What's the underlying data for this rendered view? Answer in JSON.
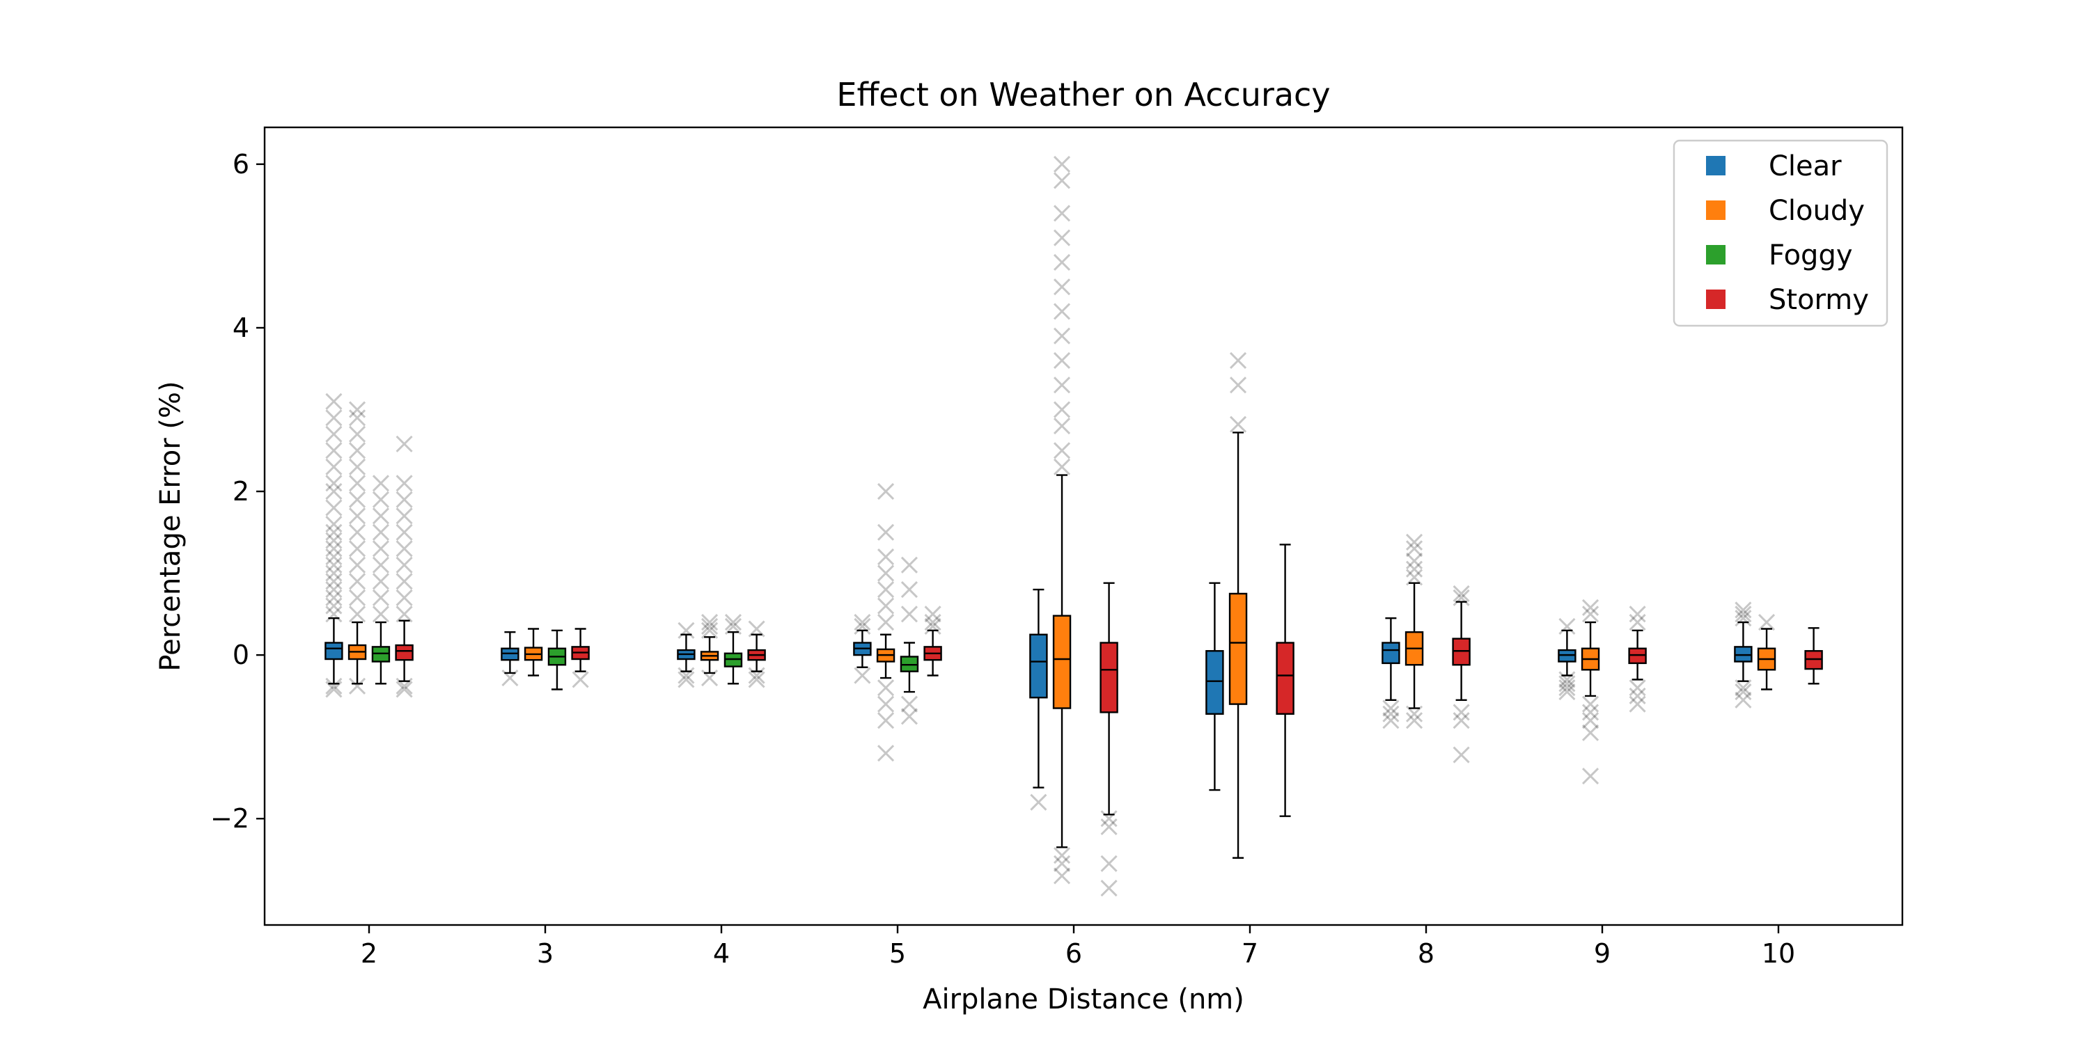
{
  "chart_data": {
    "type": "box",
    "title": "Effect on Weather on Accuracy",
    "xlabel": "Airplane Distance (nm)",
    "ylabel": "Percentage Error (%)",
    "ylim": [
      -3.3,
      6.45
    ],
    "yticks": [
      -2,
      0,
      2,
      4,
      6
    ],
    "ytick_labels": [
      "−2",
      "0",
      "2",
      "4",
      "6"
    ],
    "grid": false,
    "legend_position": "top-right",
    "categories": [
      "2",
      "3",
      "4",
      "5",
      "6",
      "7",
      "8",
      "9",
      "10"
    ],
    "series": [
      {
        "name": "Clear",
        "color": "#1f77b4",
        "boxes": [
          {
            "category": "2",
            "whisker_low": -0.35,
            "q1": -0.05,
            "median": 0.08,
            "q3": 0.15,
            "whisker_high": 0.45,
            "outliers": [
              -0.42,
              -0.38,
              0.5,
              0.6,
              0.7,
              0.8,
              0.9,
              1.0,
              1.1,
              1.2,
              1.3,
              1.4,
              1.5,
              1.6,
              1.8,
              2.0,
              2.1,
              2.3,
              2.5,
              2.7,
              2.9,
              3.1
            ]
          },
          {
            "category": "3",
            "whisker_low": -0.22,
            "q1": -0.06,
            "median": 0.02,
            "q3": 0.08,
            "whisker_high": 0.28,
            "outliers": [
              -0.28
            ]
          },
          {
            "category": "4",
            "whisker_low": -0.2,
            "q1": -0.05,
            "median": 0.01,
            "q3": 0.06,
            "whisker_high": 0.25,
            "outliers": [
              -0.3,
              -0.25,
              0.3
            ]
          },
          {
            "category": "5",
            "whisker_low": -0.15,
            "q1": 0.0,
            "median": 0.08,
            "q3": 0.15,
            "whisker_high": 0.3,
            "outliers": [
              0.35,
              0.4,
              -0.25
            ]
          },
          {
            "category": "6",
            "whisker_low": -1.62,
            "q1": -0.52,
            "median": -0.08,
            "q3": 0.25,
            "whisker_high": 0.8,
            "outliers": [
              -1.8
            ]
          },
          {
            "category": "7",
            "whisker_low": -1.65,
            "q1": -0.72,
            "median": -0.32,
            "q3": 0.05,
            "whisker_high": 0.88,
            "outliers": []
          },
          {
            "category": "8",
            "whisker_low": -0.55,
            "q1": -0.1,
            "median": 0.06,
            "q3": 0.15,
            "whisker_high": 0.45,
            "outliers": [
              -0.65,
              -0.72,
              -0.8
            ]
          },
          {
            "category": "9",
            "whisker_low": -0.25,
            "q1": -0.08,
            "median": 0.0,
            "q3": 0.06,
            "whisker_high": 0.3,
            "outliers": [
              -0.3,
              -0.35,
              -0.4,
              -0.45,
              0.35
            ]
          },
          {
            "category": "10",
            "whisker_low": -0.32,
            "q1": -0.08,
            "median": 0.0,
            "q3": 0.1,
            "whisker_high": 0.4,
            "outliers": [
              -0.4,
              -0.45,
              -0.55,
              0.45,
              0.5,
              0.55
            ]
          }
        ]
      },
      {
        "name": "Cloudy",
        "color": "#ff7f0e",
        "boxes": [
          {
            "category": "2",
            "whisker_low": -0.35,
            "q1": -0.05,
            "median": 0.04,
            "q3": 0.12,
            "whisker_high": 0.4,
            "outliers": [
              -0.38,
              0.5,
              0.7,
              0.9,
              1.1,
              1.3,
              1.5,
              1.7,
              1.9,
              2.1,
              2.3,
              2.5,
              2.7,
              2.9,
              3.0
            ]
          },
          {
            "category": "3",
            "whisker_low": -0.25,
            "q1": -0.06,
            "median": 0.01,
            "q3": 0.09,
            "whisker_high": 0.32,
            "outliers": []
          },
          {
            "category": "4",
            "whisker_low": -0.22,
            "q1": -0.06,
            "median": -0.01,
            "q3": 0.04,
            "whisker_high": 0.22,
            "outliers": [
              -0.28,
              0.3,
              0.35,
              0.4
            ]
          },
          {
            "category": "5",
            "whisker_low": -0.28,
            "q1": -0.08,
            "median": 0.0,
            "q3": 0.07,
            "whisker_high": 0.25,
            "outliers": [
              -1.2,
              -0.8,
              -0.6,
              -0.4,
              0.4,
              0.6,
              0.8,
              1.0,
              1.2,
              1.5,
              2.0
            ]
          },
          {
            "category": "6",
            "whisker_low": -2.35,
            "q1": -0.65,
            "median": -0.05,
            "q3": 0.48,
            "whisker_high": 2.2,
            "outliers": [
              -2.45,
              -2.55,
              -2.7,
              2.3,
              2.5,
              2.8,
              3.0,
              3.3,
              3.6,
              3.9,
              4.2,
              4.5,
              4.8,
              5.1,
              5.4,
              5.8,
              6.0
            ]
          },
          {
            "category": "7",
            "whisker_low": -2.48,
            "q1": -0.6,
            "median": 0.15,
            "q3": 0.75,
            "whisker_high": 2.72,
            "outliers": [
              2.82,
              3.3,
              3.6
            ]
          },
          {
            "category": "8",
            "whisker_low": -0.65,
            "q1": -0.12,
            "median": 0.08,
            "q3": 0.28,
            "whisker_high": 0.88,
            "outliers": [
              -0.72,
              -0.8,
              0.95,
              1.05,
              1.15,
              1.3,
              1.38
            ]
          },
          {
            "category": "9",
            "whisker_low": -0.5,
            "q1": -0.18,
            "median": -0.05,
            "q3": 0.08,
            "whisker_high": 0.4,
            "outliers": [
              -0.6,
              -0.7,
              -0.8,
              -0.95,
              -1.48,
              0.5,
              0.58
            ]
          },
          {
            "category": "10",
            "whisker_low": -0.42,
            "q1": -0.18,
            "median": -0.05,
            "q3": 0.08,
            "whisker_high": 0.32,
            "outliers": [
              0.4
            ]
          }
        ]
      },
      {
        "name": "Foggy",
        "color": "#2ca02c",
        "boxes": [
          {
            "category": "2",
            "whisker_low": -0.35,
            "q1": -0.08,
            "median": 0.02,
            "q3": 0.1,
            "whisker_high": 0.4,
            "outliers": [
              0.5,
              0.7,
              0.9,
              1.1,
              1.3,
              1.5,
              1.7,
              1.9,
              2.1
            ]
          },
          {
            "category": "3",
            "whisker_low": -0.42,
            "q1": -0.12,
            "median": -0.02,
            "q3": 0.08,
            "whisker_high": 0.3,
            "outliers": []
          },
          {
            "category": "4",
            "whisker_low": -0.35,
            "q1": -0.14,
            "median": -0.05,
            "q3": 0.02,
            "whisker_high": 0.28,
            "outliers": [
              0.35,
              0.4
            ]
          },
          {
            "category": "5",
            "whisker_low": -0.45,
            "q1": -0.2,
            "median": -0.12,
            "q3": -0.02,
            "whisker_high": 0.15,
            "outliers": [
              -0.75,
              -0.6,
              0.5,
              0.8,
              1.1
            ]
          }
        ]
      },
      {
        "name": "Stormy",
        "color": "#d62728",
        "boxes": [
          {
            "category": "2",
            "whisker_low": -0.32,
            "q1": -0.06,
            "median": 0.05,
            "q3": 0.12,
            "whisker_high": 0.42,
            "outliers": [
              -0.38,
              -0.42,
              0.5,
              0.7,
              0.9,
              1.1,
              1.3,
              1.5,
              1.7,
              1.9,
              2.1,
              2.58
            ]
          },
          {
            "category": "3",
            "whisker_low": -0.2,
            "q1": -0.05,
            "median": 0.03,
            "q3": 0.1,
            "whisker_high": 0.32,
            "outliers": [
              -0.3
            ]
          },
          {
            "category": "4",
            "whisker_low": -0.2,
            "q1": -0.06,
            "median": 0.0,
            "q3": 0.06,
            "whisker_high": 0.25,
            "outliers": [
              -0.3,
              -0.25,
              0.32
            ]
          },
          {
            "category": "5",
            "whisker_low": -0.25,
            "q1": -0.06,
            "median": 0.02,
            "q3": 0.1,
            "whisker_high": 0.3,
            "outliers": [
              0.35,
              0.4,
              0.5
            ]
          },
          {
            "category": "6",
            "whisker_low": -1.95,
            "q1": -0.7,
            "median": -0.18,
            "q3": 0.15,
            "whisker_high": 0.88,
            "outliers": [
              -2.0,
              -2.1,
              -2.55,
              -2.85
            ]
          },
          {
            "category": "7",
            "whisker_low": -1.97,
            "q1": -0.72,
            "median": -0.25,
            "q3": 0.15,
            "whisker_high": 1.35,
            "outliers": []
          },
          {
            "category": "8",
            "whisker_low": -0.55,
            "q1": -0.12,
            "median": 0.05,
            "q3": 0.2,
            "whisker_high": 0.65,
            "outliers": [
              -0.7,
              -0.8,
              -1.22,
              0.7,
              0.75
            ]
          },
          {
            "category": "9",
            "whisker_low": -0.3,
            "q1": -0.1,
            "median": 0.0,
            "q3": 0.08,
            "whisker_high": 0.3,
            "outliers": [
              -0.4,
              -0.5,
              -0.6,
              0.4,
              0.5
            ]
          },
          {
            "category": "10",
            "whisker_low": -0.35,
            "q1": -0.17,
            "median": -0.05,
            "q3": 0.05,
            "whisker_high": 0.33,
            "outliers": []
          }
        ]
      }
    ]
  }
}
